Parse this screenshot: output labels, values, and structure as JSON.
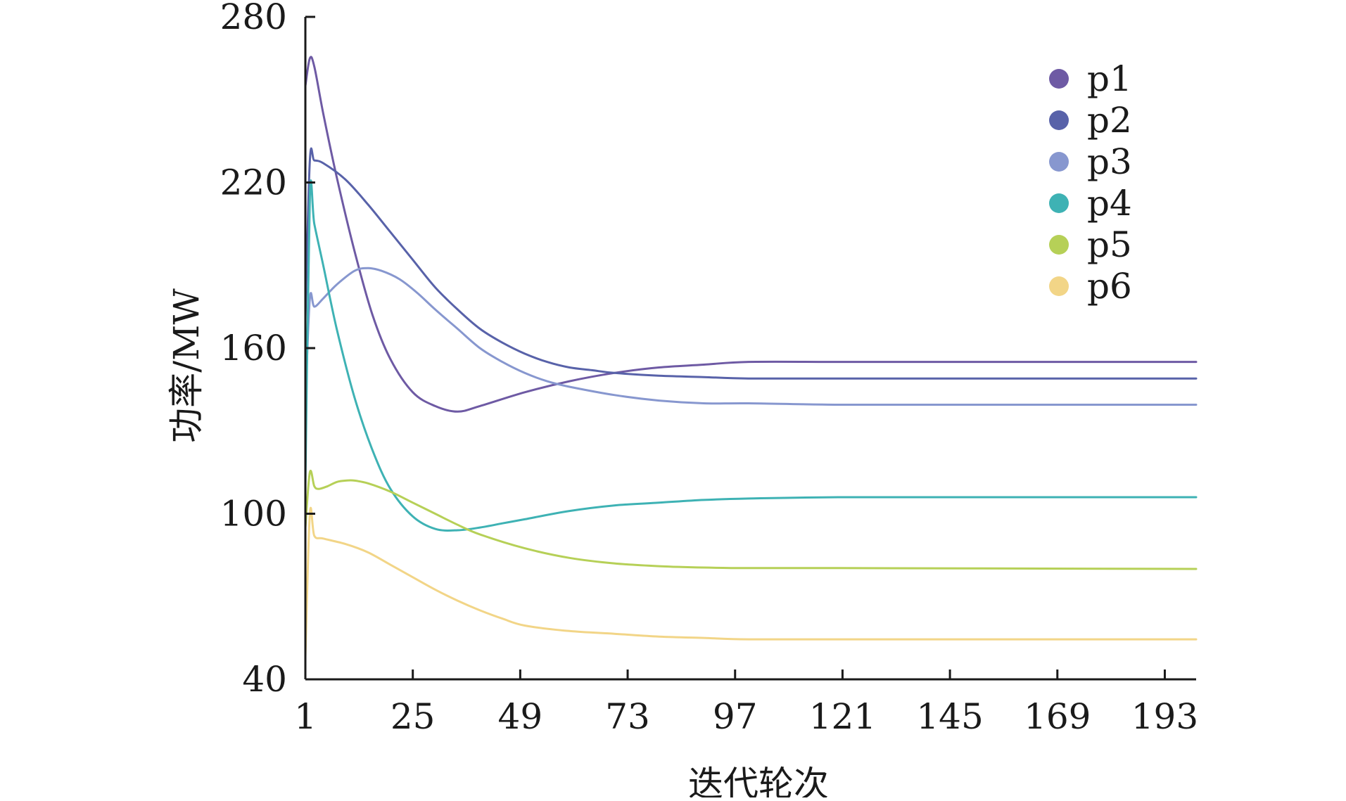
{
  "chart_data": {
    "type": "line",
    "xlabel": "迭代轮次",
    "ylabel": "功率/MW",
    "xlim": [
      1,
      200
    ],
    "ylim": [
      40,
      280
    ],
    "xticks": [
      1,
      25,
      49,
      73,
      97,
      121,
      145,
      169,
      193
    ],
    "xtick_labels": [
      "1",
      "25",
      "49",
      "73",
      "97",
      "121",
      "145",
      "169",
      "193"
    ],
    "yticks": [
      40,
      100,
      160,
      220,
      280
    ],
    "ytick_labels": [
      "40",
      "100",
      "160",
      "220",
      "280"
    ],
    "legend_position": "top-right",
    "grid": false,
    "series": [
      {
        "name": "p1",
        "color": "#6e5aa4",
        "x": [
          1,
          2,
          3,
          5,
          8,
          12,
          16,
          20,
          25,
          30,
          35,
          40,
          50,
          60,
          70,
          80,
          90,
          100,
          120,
          150,
          200
        ],
        "y": [
          255,
          265,
          262,
          245,
          222,
          195,
          172,
          156,
          144,
          139,
          137,
          139,
          144,
          148,
          151,
          153,
          154,
          155,
          155,
          155,
          155
        ]
      },
      {
        "name": "p2",
        "color": "#5862a9",
        "x": [
          1,
          2,
          3,
          5,
          10,
          15,
          20,
          25,
          30,
          35,
          40,
          45,
          50,
          55,
          60,
          65,
          70,
          80,
          90,
          100,
          120,
          150,
          200
        ],
        "y": [
          170,
          228,
          228,
          227,
          221,
          212,
          202,
          192,
          182,
          174,
          167,
          162,
          158,
          155,
          153,
          152,
          151,
          150,
          149.5,
          149,
          149,
          149,
          149
        ]
      },
      {
        "name": "p3",
        "color": "#8797cf",
        "x": [
          1,
          2,
          3,
          5,
          8,
          12,
          15,
          18,
          22,
          26,
          30,
          35,
          40,
          45,
          50,
          55,
          60,
          70,
          80,
          90,
          100,
          120,
          150,
          200
        ],
        "y": [
          140,
          178,
          175,
          178,
          183,
          188,
          189,
          188,
          185,
          180,
          174,
          167,
          160,
          155,
          151,
          148,
          146,
          143,
          141,
          140,
          140,
          139.5,
          139.5,
          139.5
        ]
      },
      {
        "name": "p4",
        "color": "#3eb2b4",
        "x": [
          1,
          2,
          3,
          5,
          8,
          12,
          16,
          20,
          25,
          30,
          35,
          40,
          45,
          50,
          60,
          70,
          80,
          90,
          100,
          120,
          150,
          200
        ],
        "y": [
          110,
          215,
          205,
          190,
          167,
          142,
          123,
          109,
          99,
          94.5,
          94,
          95,
          96.5,
          98,
          101,
          103,
          104,
          105,
          105.5,
          106,
          106,
          106
        ]
      },
      {
        "name": "p5",
        "color": "#b6d057",
        "x": [
          1,
          2,
          3,
          4,
          6,
          8,
          10,
          12,
          15,
          20,
          25,
          30,
          35,
          40,
          50,
          60,
          70,
          80,
          90,
          100,
          120,
          150,
          200
        ],
        "y": [
          95,
          115,
          110,
          109,
          110,
          111.5,
          112,
          112,
          111,
          108,
          104,
          100,
          96,
          92.5,
          87.5,
          84,
          82,
          81,
          80.5,
          80.3,
          80.3,
          80.2,
          80
        ]
      },
      {
        "name": "p6",
        "color": "#f2d587",
        "x": [
          1,
          2,
          3,
          5,
          10,
          15,
          20,
          25,
          30,
          35,
          40,
          45,
          50,
          60,
          70,
          80,
          90,
          100,
          120,
          150,
          200
        ],
        "y": [
          48,
          100,
          92,
          91,
          89,
          86,
          81.5,
          77,
          72.5,
          68.5,
          65,
          62,
          59.5,
          57.5,
          56.5,
          55.5,
          55,
          54.5,
          54.5,
          54.5,
          54.5
        ]
      }
    ]
  }
}
